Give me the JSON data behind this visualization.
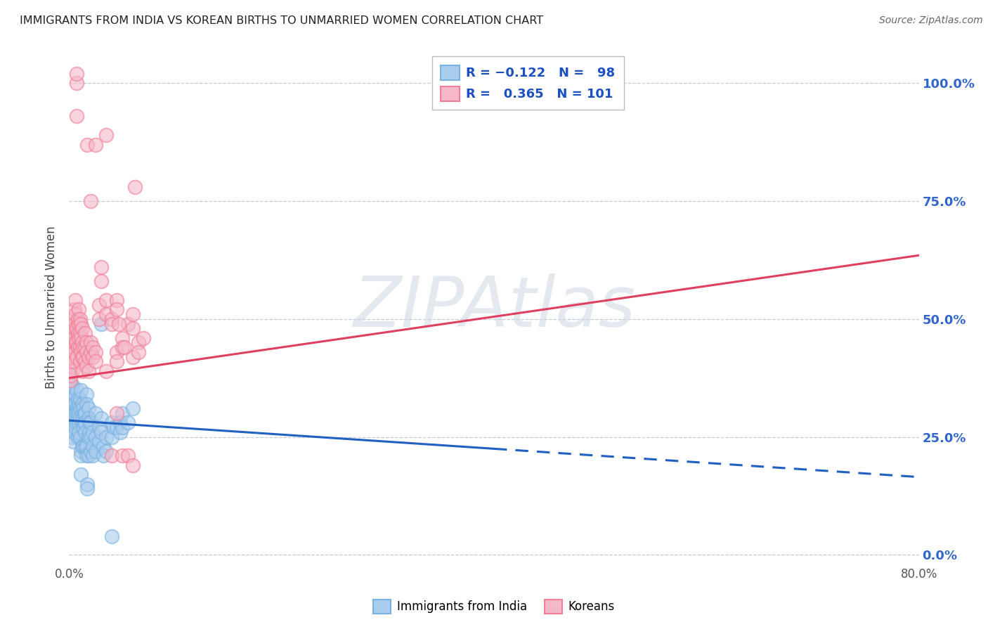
{
  "title": "IMMIGRANTS FROM INDIA VS KOREAN BIRTHS TO UNMARRIED WOMEN CORRELATION CHART",
  "source": "Source: ZipAtlas.com",
  "ylabel": "Births to Unmarried Women",
  "legend_label_blue": "Immigrants from India",
  "legend_label_pink": "Koreans",
  "blue_color": "#7ab3e0",
  "pink_color": "#f08098",
  "blue_fill_color": "#aaccee",
  "pink_fill_color": "#f4b8c8",
  "blue_line_color": "#2060c0",
  "pink_line_color": "#e04060",
  "watermark": "ZIPAtlas",
  "background_color": "#ffffff",
  "grid_color": "#c0ccd8",
  "blue_points": [
    [
      0.001,
      0.33
    ],
    [
      0.001,
      0.35
    ],
    [
      0.001,
      0.38
    ],
    [
      0.001,
      0.3
    ],
    [
      0.002,
      0.33
    ],
    [
      0.002,
      0.3
    ],
    [
      0.002,
      0.28
    ],
    [
      0.002,
      0.36
    ],
    [
      0.003,
      0.28
    ],
    [
      0.003,
      0.3
    ],
    [
      0.003,
      0.25
    ],
    [
      0.003,
      0.27
    ],
    [
      0.003,
      0.32
    ],
    [
      0.003,
      0.36
    ],
    [
      0.004,
      0.31
    ],
    [
      0.004,
      0.29
    ],
    [
      0.004,
      0.24
    ],
    [
      0.004,
      0.33
    ],
    [
      0.005,
      0.32
    ],
    [
      0.005,
      0.3
    ],
    [
      0.005,
      0.28
    ],
    [
      0.005,
      0.26
    ],
    [
      0.006,
      0.34
    ],
    [
      0.006,
      0.32
    ],
    [
      0.006,
      0.29
    ],
    [
      0.006,
      0.27
    ],
    [
      0.007,
      0.35
    ],
    [
      0.007,
      0.31
    ],
    [
      0.007,
      0.3
    ],
    [
      0.007,
      0.28
    ],
    [
      0.008,
      0.33
    ],
    [
      0.008,
      0.31
    ],
    [
      0.008,
      0.29
    ],
    [
      0.008,
      0.25
    ],
    [
      0.009,
      0.32
    ],
    [
      0.009,
      0.3
    ],
    [
      0.009,
      0.28
    ],
    [
      0.009,
      0.26
    ],
    [
      0.01,
      0.33
    ],
    [
      0.01,
      0.31
    ],
    [
      0.01,
      0.29
    ],
    [
      0.01,
      0.25
    ],
    [
      0.011,
      0.35
    ],
    [
      0.011,
      0.22
    ],
    [
      0.011,
      0.21
    ],
    [
      0.011,
      0.17
    ],
    [
      0.012,
      0.32
    ],
    [
      0.012,
      0.3
    ],
    [
      0.012,
      0.28
    ],
    [
      0.012,
      0.23
    ],
    [
      0.013,
      0.31
    ],
    [
      0.013,
      0.29
    ],
    [
      0.013,
      0.27
    ],
    [
      0.013,
      0.23
    ],
    [
      0.014,
      0.3
    ],
    [
      0.014,
      0.28
    ],
    [
      0.015,
      0.3
    ],
    [
      0.015,
      0.28
    ],
    [
      0.015,
      0.26
    ],
    [
      0.015,
      0.23
    ],
    [
      0.016,
      0.34
    ],
    [
      0.016,
      0.32
    ],
    [
      0.016,
      0.23
    ],
    [
      0.016,
      0.21
    ],
    [
      0.017,
      0.15
    ],
    [
      0.017,
      0.14
    ],
    [
      0.018,
      0.31
    ],
    [
      0.018,
      0.29
    ],
    [
      0.018,
      0.25
    ],
    [
      0.018,
      0.21
    ],
    [
      0.019,
      0.28
    ],
    [
      0.019,
      0.26
    ],
    [
      0.02,
      0.28
    ],
    [
      0.02,
      0.25
    ],
    [
      0.02,
      0.22
    ],
    [
      0.022,
      0.26
    ],
    [
      0.022,
      0.23
    ],
    [
      0.022,
      0.21
    ],
    [
      0.025,
      0.3
    ],
    [
      0.025,
      0.25
    ],
    [
      0.025,
      0.22
    ],
    [
      0.028,
      0.27
    ],
    [
      0.028,
      0.24
    ],
    [
      0.03,
      0.49
    ],
    [
      0.03,
      0.29
    ],
    [
      0.03,
      0.26
    ],
    [
      0.032,
      0.23
    ],
    [
      0.032,
      0.21
    ],
    [
      0.035,
      0.25
    ],
    [
      0.035,
      0.22
    ],
    [
      0.04,
      0.28
    ],
    [
      0.04,
      0.25
    ],
    [
      0.042,
      0.27
    ],
    [
      0.045,
      0.27
    ],
    [
      0.048,
      0.28
    ],
    [
      0.048,
      0.26
    ],
    [
      0.05,
      0.3
    ],
    [
      0.05,
      0.27
    ],
    [
      0.055,
      0.28
    ],
    [
      0.06,
      0.31
    ],
    [
      0.04,
      0.04
    ]
  ],
  "pink_points": [
    [
      0.001,
      0.44
    ],
    [
      0.001,
      0.42
    ],
    [
      0.001,
      0.39
    ],
    [
      0.001,
      0.37
    ],
    [
      0.002,
      0.46
    ],
    [
      0.002,
      0.43
    ],
    [
      0.002,
      0.4
    ],
    [
      0.002,
      0.38
    ],
    [
      0.003,
      0.48
    ],
    [
      0.003,
      0.45
    ],
    [
      0.003,
      0.42
    ],
    [
      0.003,
      0.39
    ],
    [
      0.004,
      0.5
    ],
    [
      0.004,
      0.47
    ],
    [
      0.004,
      0.44
    ],
    [
      0.004,
      0.41
    ],
    [
      0.005,
      0.52
    ],
    [
      0.005,
      0.49
    ],
    [
      0.005,
      0.46
    ],
    [
      0.005,
      0.43
    ],
    [
      0.006,
      0.54
    ],
    [
      0.006,
      0.51
    ],
    [
      0.006,
      0.48
    ],
    [
      0.006,
      0.45
    ],
    [
      0.007,
      0.48
    ],
    [
      0.007,
      0.45
    ],
    [
      0.007,
      0.42
    ],
    [
      0.008,
      0.5
    ],
    [
      0.008,
      0.47
    ],
    [
      0.008,
      0.44
    ],
    [
      0.009,
      0.52
    ],
    [
      0.009,
      0.49
    ],
    [
      0.009,
      0.46
    ],
    [
      0.01,
      0.5
    ],
    [
      0.01,
      0.47
    ],
    [
      0.01,
      0.44
    ],
    [
      0.01,
      0.41
    ],
    [
      0.011,
      0.49
    ],
    [
      0.011,
      0.46
    ],
    [
      0.011,
      0.43
    ],
    [
      0.012,
      0.48
    ],
    [
      0.012,
      0.45
    ],
    [
      0.012,
      0.42
    ],
    [
      0.012,
      0.39
    ],
    [
      0.013,
      0.44
    ],
    [
      0.013,
      0.42
    ],
    [
      0.015,
      0.47
    ],
    [
      0.015,
      0.44
    ],
    [
      0.015,
      0.41
    ],
    [
      0.016,
      0.45
    ],
    [
      0.016,
      0.43
    ],
    [
      0.016,
      0.4
    ],
    [
      0.017,
      0.87
    ],
    [
      0.018,
      0.42
    ],
    [
      0.018,
      0.39
    ],
    [
      0.02,
      0.45
    ],
    [
      0.02,
      0.43
    ],
    [
      0.02,
      0.75
    ],
    [
      0.022,
      0.44
    ],
    [
      0.022,
      0.42
    ],
    [
      0.025,
      0.43
    ],
    [
      0.025,
      0.41
    ],
    [
      0.025,
      0.87
    ],
    [
      0.028,
      0.53
    ],
    [
      0.028,
      0.5
    ],
    [
      0.03,
      0.61
    ],
    [
      0.03,
      0.58
    ],
    [
      0.035,
      0.54
    ],
    [
      0.035,
      0.51
    ],
    [
      0.035,
      0.39
    ],
    [
      0.035,
      0.89
    ],
    [
      0.007,
      0.93
    ],
    [
      0.007,
      1.0
    ],
    [
      0.007,
      1.02
    ],
    [
      0.04,
      0.5
    ],
    [
      0.04,
      0.49
    ],
    [
      0.04,
      0.21
    ],
    [
      0.045,
      0.43
    ],
    [
      0.045,
      0.41
    ],
    [
      0.045,
      0.54
    ],
    [
      0.045,
      0.52
    ],
    [
      0.045,
      0.3
    ],
    [
      0.05,
      0.46
    ],
    [
      0.05,
      0.44
    ],
    [
      0.05,
      0.21
    ],
    [
      0.055,
      0.49
    ],
    [
      0.055,
      0.21
    ],
    [
      0.06,
      0.51
    ],
    [
      0.06,
      0.48
    ],
    [
      0.06,
      0.42
    ],
    [
      0.06,
      0.19
    ],
    [
      0.065,
      0.45
    ],
    [
      0.065,
      0.43
    ],
    [
      0.07,
      0.46
    ],
    [
      0.047,
      0.49
    ],
    [
      0.052,
      0.44
    ],
    [
      0.062,
      0.78
    ]
  ],
  "blue_line": {
    "x0": 0.0,
    "y0": 0.285,
    "x1": 0.4,
    "y1": 0.225
  },
  "blue_dash_line": {
    "x0": 0.4,
    "y0": 0.225,
    "x1": 0.8,
    "y1": 0.165
  },
  "pink_line": {
    "x0": 0.0,
    "y0": 0.375,
    "x1": 0.8,
    "y1": 0.635
  },
  "xlim": [
    0.0,
    0.8
  ],
  "ylim": [
    -0.02,
    1.07
  ],
  "y_ticks": [
    0.0,
    0.25,
    0.5,
    0.75,
    1.0
  ],
  "y_tick_labels": [
    "0.0%",
    "25.0%",
    "50.0%",
    "75.0%",
    "100.0%"
  ],
  "x_ticks": [
    0.0,
    0.8
  ],
  "x_tick_labels": [
    "0.0%",
    "80.0%"
  ]
}
